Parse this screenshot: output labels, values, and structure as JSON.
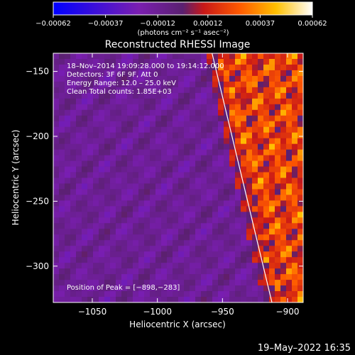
{
  "chart_data": {
    "type": "heatmap",
    "title": "Reconstructed RHESSI Image",
    "xlabel": "Heliocentric X (arcsec)",
    "ylabel": "Heliocentric Y (arcsec)",
    "xlim": [
      -1080,
      -888
    ],
    "ylim": [
      -328,
      -136
    ],
    "xticks": [
      -1050,
      -1000,
      -950,
      -900
    ],
    "xtick_labels": [
      "−1050",
      "−1000",
      "−950",
      "−900"
    ],
    "yticks": [
      -150,
      -200,
      -250,
      -300
    ],
    "ytick_labels": [
      "−150",
      "−200",
      "−250",
      "−300"
    ],
    "colorbar": {
      "range": [
        -0.00062,
        0.00062
      ],
      "ticks": [
        -0.00062,
        -0.00037,
        -0.00012,
        0.00012,
        0.00037,
        0.00062
      ],
      "tick_labels": [
        "−0.00062",
        "−0.00037",
        "−0.00012",
        "0.00012",
        "0.00037",
        "0.00062"
      ],
      "unit_label": "(photons cm⁻² s⁻¹ asec⁻²)"
    },
    "annotations": [
      "18–Nov–2014 19:09:28.000 to 19:14:12.000",
      "Detectors: 3F 6F 9F, Att 0",
      "Energy Range: 12.0 – 25.0 keV",
      "Clean    Total counts: 1.85E+03"
    ],
    "peak_label": "Position of Peak = [−898,−283]",
    "limb_line": [
      [
        -958,
        -136
      ],
      [
        -912,
        -328
      ]
    ]
  },
  "timestamp": "19–May–2022 16:35"
}
